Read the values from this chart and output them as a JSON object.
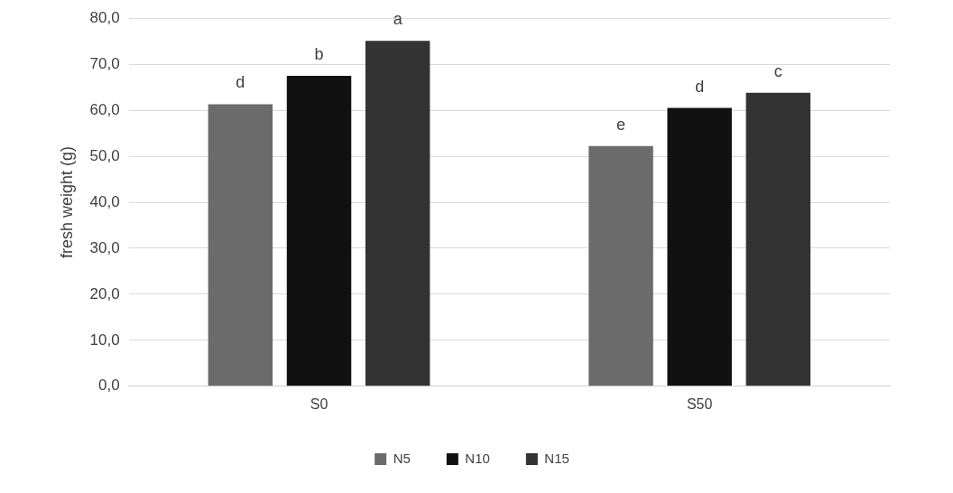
{
  "chart_data": {
    "type": "bar",
    "ylabel": "fresh weight (g)",
    "categories": [
      "S0",
      "S50"
    ],
    "series": [
      {
        "name": "N5",
        "color": "#6b6b6b",
        "values": [
          61.3,
          52.2
        ],
        "value_labels": [
          "d",
          "e"
        ]
      },
      {
        "name": "N10",
        "color": "#111111",
        "values": [
          67.5,
          60.5
        ],
        "value_labels": [
          "b",
          "d"
        ]
      },
      {
        "name": "N15",
        "color": "#333333",
        "values": [
          75.1,
          63.8
        ],
        "value_labels": [
          "a",
          "c"
        ]
      }
    ],
    "ylim": [
      0,
      80
    ],
    "yticks": [
      {
        "value": 0,
        "label": "0,0"
      },
      {
        "value": 10,
        "label": "10,0"
      },
      {
        "value": 20,
        "label": "20,0"
      },
      {
        "value": 30,
        "label": "30,0"
      },
      {
        "value": 40,
        "label": "40,0"
      },
      {
        "value": 50,
        "label": "50,0"
      },
      {
        "value": 60,
        "label": "60,0"
      },
      {
        "value": 70,
        "label": "70,0"
      },
      {
        "value": 80,
        "label": "80,0"
      }
    ],
    "grid": "y",
    "legend": "bottom"
  }
}
